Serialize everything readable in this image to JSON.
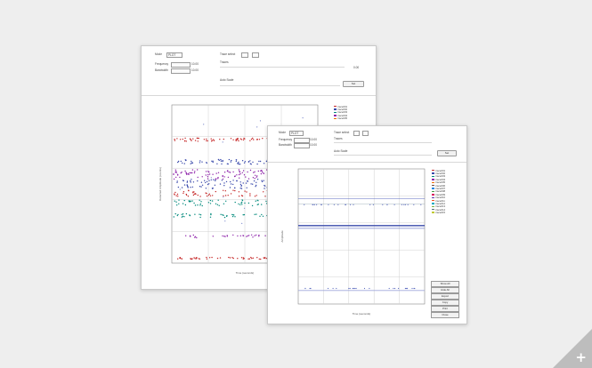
{
  "back_window": {
    "controls": {
      "mode_label": "Mode",
      "mode_value": "PLOT",
      "frequency_label": "Frequency",
      "frequency_value": "10.00",
      "bandwidth_label": "Bandwidth",
      "bandwidth_value": "10.00",
      "trace_select_label": "Trace select",
      "traces_label": "Traces",
      "value_readout": "0.00",
      "limit_label": "Auto Scale",
      "apply_button": "Set"
    },
    "plot": {
      "ylabel": "Detected Amplitude (counts)",
      "xlabel": "Time (seconds)"
    },
    "legend": [
      {
        "name": "trace001",
        "color": "#c62828"
      },
      {
        "name": "trace002",
        "color": "#3949ab"
      },
      {
        "name": "trace003",
        "color": "#00897b"
      },
      {
        "name": "trace004",
        "color": "#8e24aa"
      },
      {
        "name": "trace005",
        "color": "#ef6c00"
      }
    ]
  },
  "front_window": {
    "controls": {
      "mode_label": "Mode",
      "mode_value": "PLOT",
      "frequency_label": "Frequency",
      "frequency_value": "10.00",
      "bandwidth_label": "Bandwidth",
      "bandwidth_value": "10.00",
      "trace_select_label": "Trace select",
      "traces_label": "Traces",
      "limit_label": "Auto Scale",
      "apply_button": "Set"
    },
    "plot": {
      "ylabel": "Amplitude",
      "xlabel": "Time (seconds)"
    },
    "legend": [
      {
        "name": "trace001",
        "color": "#c62828"
      },
      {
        "name": "trace002",
        "color": "#3949ab"
      },
      {
        "name": "trace003",
        "color": "#00897b"
      },
      {
        "name": "trace004",
        "color": "#8e24aa"
      },
      {
        "name": "trace005",
        "color": "#ef6c00"
      },
      {
        "name": "trace006",
        "color": "#6d4c41"
      },
      {
        "name": "trace007",
        "color": "#1e88e5"
      },
      {
        "name": "trace008",
        "color": "#43a047"
      },
      {
        "name": "trace009",
        "color": "#d81b60"
      },
      {
        "name": "trace010",
        "color": "#5e35b1"
      },
      {
        "name": "trace011",
        "color": "#f4511e"
      },
      {
        "name": "trace012",
        "color": "#00acc1"
      },
      {
        "name": "trace013",
        "color": "#7cb342"
      },
      {
        "name": "trace014",
        "color": "#546e7a"
      },
      {
        "name": "trace015",
        "color": "#c0ca33"
      }
    ],
    "side_buttons": [
      "Show All",
      "Hide All",
      "Export",
      "Copy",
      "Print",
      "Close"
    ]
  }
}
